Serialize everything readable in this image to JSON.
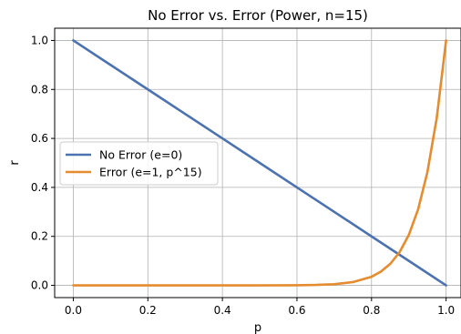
{
  "chart_data": {
    "type": "line",
    "title": "No Error vs. Error (Power, n=15)",
    "xlabel": "p",
    "ylabel": "r",
    "xlim": [
      -0.05,
      1.04
    ],
    "ylim": [
      -0.05,
      1.05
    ],
    "xticks": [
      0.0,
      0.2,
      0.4,
      0.6,
      0.8,
      1.0
    ],
    "xtick_labels": [
      "0.0",
      "0.2",
      "0.4",
      "0.6",
      "0.8",
      "1.0"
    ],
    "yticks": [
      0.0,
      0.2,
      0.4,
      0.6,
      0.8,
      1.0
    ],
    "ytick_labels": [
      "0.0",
      "0.2",
      "0.4",
      "0.6",
      "0.8",
      "1.0"
    ],
    "grid": true,
    "legend_position": "center-left",
    "series": [
      {
        "name": "No Error (e=0)",
        "color": "#4c72b0",
        "x": [
          0.0,
          0.1,
          0.2,
          0.3,
          0.4,
          0.5,
          0.6,
          0.7,
          0.8,
          0.9,
          1.0
        ],
        "y": [
          1.0,
          0.9,
          0.8,
          0.7,
          0.6,
          0.5,
          0.4,
          0.3,
          0.2,
          0.1,
          0.0
        ]
      },
      {
        "name": "Error (e=1, p^15)",
        "color": "#e48c2f",
        "x": [
          0.0,
          0.5,
          0.6,
          0.65,
          0.7,
          0.75,
          0.8,
          0.825,
          0.85,
          0.875,
          0.9,
          0.925,
          0.95,
          0.975,
          1.0
        ],
        "y": [
          0.0,
          0.0,
          0.0005,
          0.0016,
          0.0047,
          0.0134,
          0.0352,
          0.0558,
          0.0874,
          0.1349,
          0.2059,
          0.3104,
          0.4633,
          0.684,
          1.0
        ]
      }
    ]
  }
}
